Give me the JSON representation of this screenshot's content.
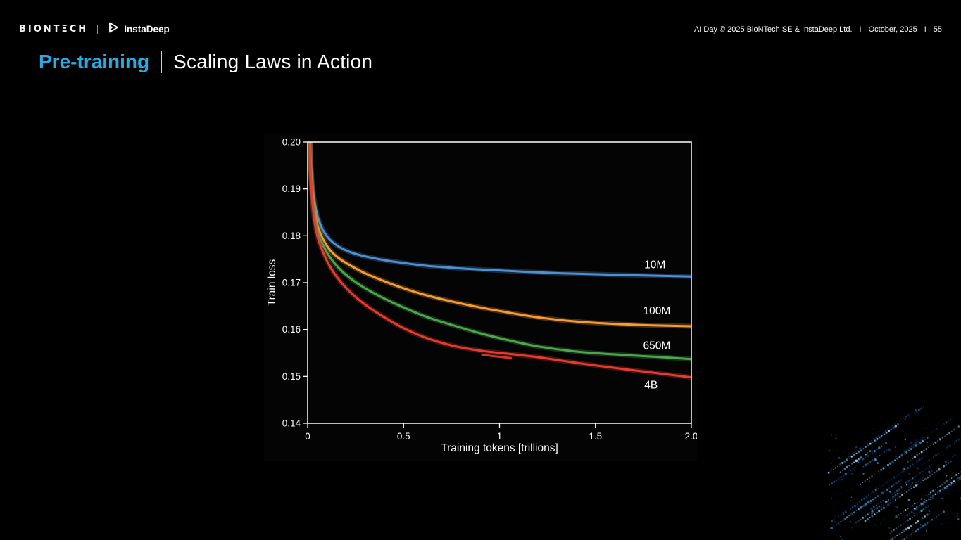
{
  "header": {
    "biontech_logo": "BIONTΞCH",
    "instadeep_logo": "InstaDeep",
    "meta_left": "AI Day © 2025  BioNTech SE & InstaDeep Ltd.",
    "separator": "I",
    "meta_date": "October, 2025",
    "meta_page": "55"
  },
  "title": {
    "highlight": "Pre-training",
    "rest": "Scaling Laws in Action",
    "highlight_color": "#29abe2"
  },
  "chart_data": {
    "type": "line",
    "xlabel": "Training tokens [trillions]",
    "ylabel": "Train loss",
    "xlim": [
      0,
      2.0
    ],
    "ylim": [
      0.14,
      0.2
    ],
    "x_ticks": [
      0,
      0.5,
      1,
      1.5,
      2.0
    ],
    "x_tick_labels": [
      "0",
      "0.5",
      "1",
      "1.5",
      "2.0"
    ],
    "y_ticks": [
      0.14,
      0.15,
      0.16,
      0.17,
      0.18,
      0.19,
      0.2
    ],
    "y_tick_labels": [
      "0.14",
      "0.15",
      "0.16",
      "0.17",
      "0.18",
      "0.19",
      "0.20"
    ],
    "grid": false,
    "legend_position": "inline-right",
    "series": [
      {
        "name": "10M",
        "color": "#4f8fd3",
        "label_pos": {
          "x": 1.81,
          "y": 0.1738
        },
        "x": [
          0.005,
          0.015,
          0.03,
          0.05,
          0.08,
          0.12,
          0.17,
          0.23,
          0.3,
          0.4,
          0.5,
          0.62,
          0.75,
          0.9,
          1.05,
          1.2,
          1.4,
          1.6,
          1.8,
          2.0
        ],
        "y": [
          0.21,
          0.197,
          0.189,
          0.1845,
          0.1812,
          0.179,
          0.1775,
          0.1764,
          0.1756,
          0.1748,
          0.1742,
          0.1736,
          0.1732,
          0.1728,
          0.1725,
          0.1722,
          0.1719,
          0.1717,
          0.1715,
          0.1713
        ]
      },
      {
        "name": "100M",
        "color": "#f79b33",
        "label_pos": {
          "x": 1.82,
          "y": 0.164
        },
        "x": [
          0.005,
          0.015,
          0.03,
          0.05,
          0.08,
          0.12,
          0.17,
          0.23,
          0.3,
          0.4,
          0.5,
          0.62,
          0.75,
          0.9,
          1.05,
          1.2,
          1.4,
          1.6,
          1.8,
          2.0
        ],
        "y": [
          0.21,
          0.196,
          0.1875,
          0.1825,
          0.1793,
          0.1768,
          0.175,
          0.1735,
          0.172,
          0.1703,
          0.1688,
          0.1673,
          0.166,
          0.1647,
          0.1636,
          0.1626,
          0.1617,
          0.1612,
          0.1609,
          0.1607
        ]
      },
      {
        "name": "650M",
        "color": "#4ca64c",
        "label_pos": {
          "x": 1.82,
          "y": 0.1566
        },
        "x": [
          0.005,
          0.015,
          0.03,
          0.05,
          0.08,
          0.12,
          0.17,
          0.23,
          0.3,
          0.4,
          0.5,
          0.62,
          0.75,
          0.9,
          1.05,
          1.2,
          1.4,
          1.6,
          1.8,
          2.0
        ],
        "y": [
          0.209,
          0.195,
          0.186,
          0.1812,
          0.178,
          0.1752,
          0.1728,
          0.1707,
          0.1688,
          0.1666,
          0.1647,
          0.1627,
          0.161,
          0.1592,
          0.1577,
          0.1564,
          0.1553,
          0.1547,
          0.1542,
          0.1537
        ]
      },
      {
        "name": "4B",
        "color": "#e53c30",
        "label_pos": {
          "x": 1.79,
          "y": 0.1482
        },
        "x": [
          0.005,
          0.015,
          0.03,
          0.05,
          0.08,
          0.12,
          0.17,
          0.23,
          0.3,
          0.4,
          0.5,
          0.62,
          0.75,
          0.9,
          1.05,
          1.2,
          1.4,
          1.6,
          1.8,
          2.0
        ],
        "y": [
          0.209,
          0.194,
          0.185,
          0.18,
          0.1765,
          0.1732,
          0.1703,
          0.1677,
          0.1653,
          0.1626,
          0.1603,
          0.1582,
          0.1566,
          0.1555,
          0.1548,
          0.1541,
          0.1529,
          0.1518,
          0.1508,
          0.1498
        ],
        "extra_segment": {
          "x": [
            0.91,
            1.06
          ],
          "y": [
            0.1546,
            0.1539
          ]
        }
      }
    ]
  }
}
